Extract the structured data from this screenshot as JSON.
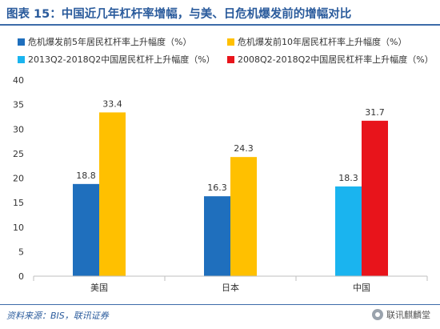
{
  "title": "图表 15：中国近几年杠杆率增幅，与美、日危机爆发前的增幅对比",
  "source": "资料来源：BIS，联讯证券",
  "watermark": "联讯麒麟堂",
  "chart_data": {
    "type": "bar",
    "title": "",
    "xlabel": "",
    "ylabel": "",
    "categories": [
      "美国",
      "日本",
      "中国"
    ],
    "ylim": [
      0,
      40
    ],
    "yticks": [
      0,
      5,
      10,
      15,
      20,
      25,
      30,
      35,
      40
    ],
    "grid": false,
    "legend_position": "top",
    "series": [
      {
        "name": "危机爆发前5年居民杠杆率上升幅度（%）",
        "color": "#1f6fbd",
        "values": [
          18.8,
          16.3,
          null
        ]
      },
      {
        "name": "危机爆发前10年居民杠杆率上升幅度（%）",
        "color": "#ffc000",
        "values": [
          33.4,
          24.3,
          null
        ]
      },
      {
        "name": "2013Q2-2018Q2中国居民杠杆上升幅度（%）",
        "color": "#1ab4ef",
        "values": [
          null,
          null,
          18.3
        ]
      },
      {
        "name": "2008Q2-2018Q2中国居民杠杆率上升幅度（%）",
        "color": "#e8141b",
        "values": [
          null,
          null,
          31.7
        ]
      }
    ]
  }
}
